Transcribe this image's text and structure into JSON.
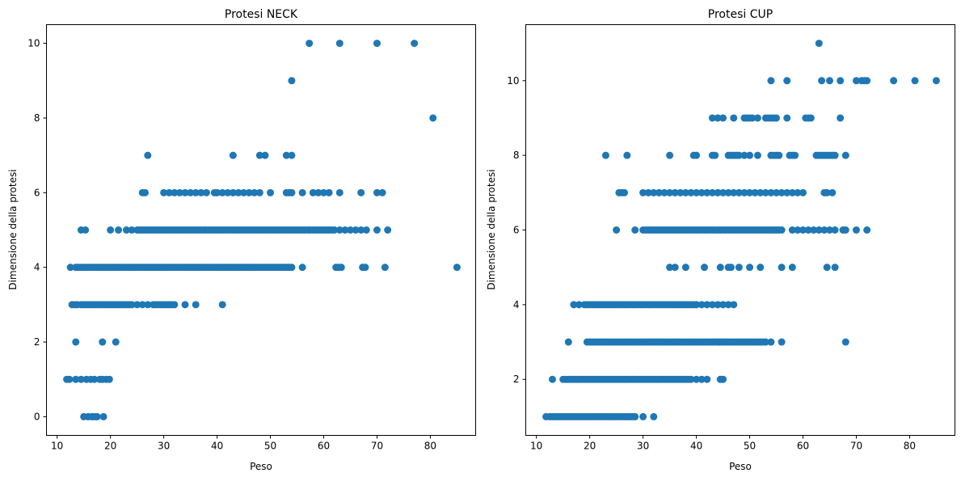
{
  "chart_data": [
    {
      "type": "scatter",
      "title": "Protesi NECK",
      "xlabel": "Peso",
      "ylabel": "Dimensione della protesi",
      "xlim": [
        8,
        88.5
      ],
      "ylim": [
        -0.5,
        10.5
      ],
      "xticks": [
        10,
        20,
        30,
        40,
        50,
        60,
        70,
        80
      ],
      "yticks": [
        0,
        2,
        4,
        6,
        8,
        10
      ],
      "grid": false,
      "color": "#1f77b4",
      "points": {
        "y0": [
          15,
          15.8,
          16.5,
          17,
          17.5,
          18.7
        ],
        "y1": [
          11.8,
          12.3,
          13.5,
          14.5,
          15.5,
          16.3,
          17,
          18,
          18.5,
          19.2,
          19.8
        ],
        "y2": [
          13.5,
          18.5,
          21
        ],
        "y3": [
          12.8,
          13.3,
          13.8,
          14.5,
          15,
          15.5,
          16,
          16.5,
          17,
          17.5,
          18,
          18.5,
          19,
          19.5,
          20,
          20.5,
          21,
          21.5,
          22,
          22.5,
          23,
          23.5,
          24,
          25,
          26,
          27,
          28,
          28.5,
          29,
          29.5,
          30,
          30.5,
          31,
          31.5,
          32,
          34,
          36,
          41
        ],
        "y4": [
          12.5,
          13.5,
          14,
          14.5,
          15,
          15.5,
          16,
          16.5,
          17,
          17.5,
          18,
          18.5,
          19,
          19.5,
          20,
          20.5,
          21,
          21.5,
          22,
          22.5,
          23,
          23.5,
          24,
          24.5,
          25,
          25.5,
          26,
          26.5,
          27,
          27.5,
          28,
          28.5,
          29,
          29.5,
          30,
          30.5,
          31,
          31.5,
          32,
          32.5,
          33,
          33.5,
          34,
          34.5,
          35,
          35.5,
          36,
          36.5,
          37,
          37.5,
          38,
          38.5,
          39,
          39.5,
          40,
          40.5,
          41,
          41.5,
          42,
          42.5,
          43,
          43.5,
          44,
          44.5,
          45,
          45.5,
          46,
          46.5,
          47,
          47.5,
          48,
          48.5,
          49,
          49.5,
          50,
          50.5,
          51,
          51.5,
          52,
          52.5,
          53,
          53.5,
          54,
          56,
          62.3,
          62.8,
          63.3,
          67.3,
          67.8,
          71.5,
          85
        ],
        "y5": [
          14.5,
          15.3,
          20,
          21.5,
          23,
          24,
          25,
          25.5,
          26,
          26.5,
          27,
          27.5,
          28,
          28.5,
          29,
          29.5,
          30,
          30.5,
          31,
          31.5,
          32,
          32.5,
          33,
          33.5,
          34,
          34.5,
          35,
          35.5,
          36,
          36.5,
          37,
          37.5,
          38,
          38.5,
          39,
          39.5,
          40,
          40.5,
          41,
          41.5,
          42,
          42.5,
          43,
          43.5,
          44,
          44.5,
          45,
          45.5,
          46,
          46.5,
          47,
          47.5,
          48,
          48.5,
          49,
          49.5,
          50,
          50.5,
          51,
          51.5,
          52,
          52.5,
          53,
          53.5,
          54,
          54.5,
          55,
          55.5,
          56,
          56.5,
          57,
          57.5,
          58,
          58.5,
          59,
          59.5,
          60,
          60.5,
          61,
          61.5,
          62,
          63,
          64,
          65,
          66,
          67,
          68,
          70,
          72
        ],
        "y6": [
          26,
          26.5,
          30,
          31,
          32,
          33,
          34,
          35,
          36,
          37,
          38,
          39.5,
          40,
          41,
          42,
          43,
          44,
          45,
          46,
          47,
          48,
          50,
          53,
          53.5,
          54,
          56,
          58,
          59,
          60,
          61,
          63,
          67,
          70,
          71
        ],
        "y7": [
          27,
          43,
          48,
          49,
          53,
          54
        ],
        "y8": [
          80.5
        ],
        "y9": [
          54
        ],
        "y10": [
          57.3,
          63,
          70,
          77
        ]
      }
    },
    {
      "type": "scatter",
      "title": "Protesi CUP",
      "xlabel": "Peso",
      "ylabel": "Dimensione della protesi",
      "xlim": [
        8,
        88.5
      ],
      "ylim": [
        0.5,
        11.5
      ],
      "xticks": [
        10,
        20,
        30,
        40,
        50,
        60,
        70,
        80
      ],
      "yticks": [
        2,
        4,
        6,
        8,
        10
      ],
      "grid": false,
      "color": "#1f77b4",
      "points": {
        "y1": [
          11.8,
          12.5,
          13,
          13.5,
          14,
          14.5,
          15,
          15.5,
          16,
          16.5,
          17,
          17.5,
          18,
          18.5,
          19,
          19.5,
          20,
          20.5,
          21,
          21.5,
          22,
          22.5,
          23,
          23.5,
          24,
          24.5,
          25,
          25.5,
          26,
          26.5,
          27,
          27.5,
          28,
          28.5,
          30,
          32
        ],
        "y2": [
          13,
          15,
          15.5,
          16,
          16.5,
          17,
          17.5,
          18,
          18.5,
          19,
          19.5,
          20,
          20.5,
          21,
          21.5,
          22,
          22.5,
          23,
          23.5,
          24,
          24.5,
          25,
          25.5,
          26,
          26.5,
          27,
          27.5,
          28,
          28.5,
          29,
          29.5,
          30,
          30.5,
          31,
          31.5,
          32,
          32.5,
          33,
          33.5,
          34,
          34.5,
          35,
          35.5,
          36,
          36.5,
          37,
          37.5,
          38,
          38.5,
          39,
          40,
          41,
          42,
          44.5,
          45
        ],
        "y3": [
          16,
          19.5,
          20,
          20.5,
          21,
          21.5,
          22,
          22.5,
          23,
          23.5,
          24,
          24.5,
          25,
          25.5,
          26,
          26.5,
          27,
          27.5,
          28,
          28.5,
          29,
          29.5,
          30,
          30.5,
          31,
          31.5,
          32,
          32.5,
          33,
          33.5,
          34,
          34.5,
          35,
          35.5,
          36,
          36.5,
          37,
          37.5,
          38,
          38.5,
          39,
          39.5,
          40,
          40.5,
          41,
          41.5,
          42,
          42.5,
          43,
          43.5,
          44,
          44.5,
          45,
          45.5,
          46,
          46.5,
          47,
          47.5,
          48,
          48.5,
          49,
          49.5,
          50,
          50.5,
          51,
          51.5,
          52,
          52.5,
          53,
          54,
          56,
          68
        ],
        "y4": [
          17,
          18,
          19,
          19.5,
          20,
          20.5,
          21,
          21.5,
          22,
          22.5,
          23,
          23.5,
          24,
          24.5,
          25,
          25.5,
          26,
          26.5,
          27,
          27.5,
          28,
          28.5,
          29,
          29.5,
          30,
          30.5,
          31,
          31.5,
          32,
          32.5,
          33,
          33.5,
          34,
          34.5,
          35,
          35.5,
          36,
          36.5,
          37,
          37.5,
          38,
          38.5,
          39,
          39.5,
          40,
          41,
          42,
          43,
          44,
          45,
          46,
          47
        ],
        "y5": [
          35,
          36,
          38,
          41.5,
          44.5,
          46,
          46.5,
          48,
          50,
          52,
          56,
          58,
          64.5,
          66
        ],
        "y6": [
          25,
          28.5,
          30,
          30.5,
          31,
          31.5,
          32,
          32.5,
          33,
          33.5,
          34,
          34.5,
          35,
          35.5,
          36,
          36.5,
          37,
          37.5,
          38,
          38.5,
          39,
          39.5,
          40,
          40.5,
          41,
          41.5,
          42,
          42.5,
          43,
          43.5,
          44,
          44.5,
          45,
          45.5,
          46,
          46.5,
          47,
          47.5,
          48,
          48.5,
          49,
          49.5,
          50,
          50.5,
          51,
          51.5,
          52,
          52.5,
          53,
          53.5,
          54,
          54.5,
          55,
          55.5,
          56,
          58,
          59,
          60,
          61,
          62,
          63,
          64,
          65,
          66,
          67.5,
          68,
          70,
          72
        ],
        "y7": [
          25.5,
          26,
          26.5,
          30,
          31,
          32,
          33,
          34,
          35,
          36,
          37,
          38,
          39,
          40,
          41,
          42,
          43,
          44,
          45,
          46,
          47,
          48,
          49,
          50,
          51,
          52,
          53,
          54,
          55,
          56,
          57,
          58,
          59,
          60,
          64,
          64.5,
          65.5
        ],
        "y8": [
          23,
          27,
          35,
          39.5,
          40,
          43,
          43.5,
          46,
          46.5,
          47,
          47.5,
          48,
          49,
          50,
          51.5,
          54,
          54.5,
          55,
          55.5,
          57.5,
          58,
          58.5,
          62.5,
          63,
          63.5,
          64,
          64.5,
          65,
          65.5,
          66,
          68
        ],
        "y9": [
          43,
          44,
          45,
          47,
          49,
          49.5,
          50,
          50.5,
          51.5,
          53,
          53.5,
          54,
          54.5,
          55,
          57,
          60.5,
          61,
          61.5,
          67
        ],
        "y10": [
          54,
          57,
          63.5,
          65,
          67,
          70,
          71,
          71.5,
          72,
          77,
          81,
          85
        ],
        "y11": [
          63
        ]
      }
    }
  ]
}
